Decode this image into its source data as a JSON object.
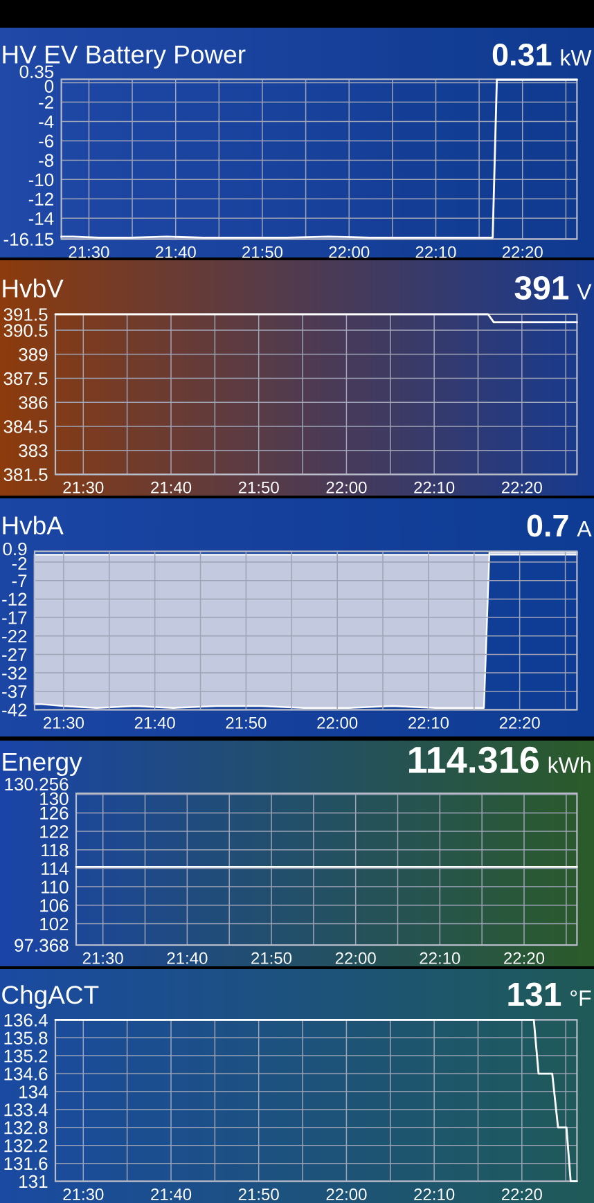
{
  "chart_data": [
    {
      "type": "line",
      "title": "HV EV Battery Power",
      "subtitle": "0.31",
      "ylabel": "kW",
      "color": "#ffffff",
      "grid": true,
      "x": [
        21.447,
        21.47,
        21.52,
        21.58,
        21.65,
        21.72,
        21.8,
        21.88,
        21.96,
        22.04,
        22.12,
        22.2,
        22.25,
        22.276,
        22.284,
        22.32,
        22.38,
        22.438
      ],
      "values": [
        -15.9,
        -15.9,
        -16,
        -16,
        -15.9,
        -16,
        -16,
        -16,
        -15.9,
        -16,
        -16,
        -16,
        -16,
        -16,
        0.3,
        0.3,
        0.3,
        0.3
      ],
      "xlim": [
        21.447,
        22.438
      ],
      "ylim": [
        -16.15,
        0.35
      ],
      "xticks": [
        {
          "value": 21.5,
          "label": "21:30"
        },
        {
          "value": 21.5833,
          "label": null
        },
        {
          "value": 21.6667,
          "label": "21:40"
        },
        {
          "value": 21.75,
          "label": null
        },
        {
          "value": 21.8333,
          "label": "21:50"
        },
        {
          "value": 21.9167,
          "label": null
        },
        {
          "value": 22,
          "label": "22:00"
        },
        {
          "value": 22.0833,
          "label": null
        },
        {
          "value": 22.1667,
          "label": "22:10"
        },
        {
          "value": 22.25,
          "label": null
        },
        {
          "value": 22.3333,
          "label": "22:20"
        },
        {
          "value": 22.4167,
          "label": null
        }
      ],
      "yticks": [
        -16.15,
        -14,
        -12,
        -10,
        -8,
        -6,
        -4,
        -2,
        0,
        0.35
      ]
    },
    {
      "type": "line",
      "title": "HvbV",
      "subtitle": "391",
      "ylabel": "V",
      "color": "#ffffff",
      "grid": true,
      "x": [
        21.447,
        21.7,
        22.0,
        22.269,
        22.28,
        22.35,
        22.438
      ],
      "values": [
        391.5,
        391.5,
        391.5,
        391.5,
        391,
        391,
        391
      ],
      "xlim": [
        21.447,
        22.438
      ],
      "ylim": [
        381.5,
        391.5
      ],
      "xticks": [
        {
          "value": 21.5,
          "label": "21:30"
        },
        {
          "value": 21.5833,
          "label": null
        },
        {
          "value": 21.6667,
          "label": "21:40"
        },
        {
          "value": 21.75,
          "label": null
        },
        {
          "value": 21.8333,
          "label": "21:50"
        },
        {
          "value": 21.9167,
          "label": null
        },
        {
          "value": 22,
          "label": "22:00"
        },
        {
          "value": 22.0833,
          "label": null
        },
        {
          "value": 22.1667,
          "label": "22:10"
        },
        {
          "value": 22.25,
          "label": null
        },
        {
          "value": 22.3333,
          "label": "22:20"
        },
        {
          "value": 22.4167,
          "label": null
        }
      ],
      "yticks": [
        381.5,
        383,
        384.5,
        386,
        387.5,
        389,
        390.5,
        391.5
      ]
    },
    {
      "type": "area",
      "title": "HvbA",
      "subtitle": "0.7",
      "ylabel": "A",
      "color": "#c3c9de",
      "grid": true,
      "x": [
        21.447,
        21.46,
        21.5,
        21.56,
        21.63,
        21.7,
        21.78,
        21.86,
        21.94,
        22.02,
        22.1,
        22.18,
        22.24,
        22.268,
        22.278,
        22.33,
        22.38,
        22.438
      ],
      "values": [
        -40.5,
        -40.5,
        -41,
        -41.5,
        -41,
        -41.5,
        -41,
        -41,
        -41.5,
        -41.5,
        -41,
        -41.5,
        -41.5,
        -41.5,
        0.7,
        0.7,
        0.8,
        0.7
      ],
      "xlim": [
        21.447,
        22.438
      ],
      "ylim": [
        -42,
        0.9
      ],
      "xticks": [
        {
          "value": 21.5,
          "label": "21:30"
        },
        {
          "value": 21.5833,
          "label": null
        },
        {
          "value": 21.6667,
          "label": "21:40"
        },
        {
          "value": 21.75,
          "label": null
        },
        {
          "value": 21.8333,
          "label": "21:50"
        },
        {
          "value": 21.9167,
          "label": null
        },
        {
          "value": 22,
          "label": "22:00"
        },
        {
          "value": 22.0833,
          "label": null
        },
        {
          "value": 22.1667,
          "label": "22:10"
        },
        {
          "value": 22.25,
          "label": null
        },
        {
          "value": 22.3333,
          "label": "22:20"
        },
        {
          "value": 22.4167,
          "label": null
        }
      ],
      "yticks": [
        -42,
        -37,
        -32,
        -27,
        -22,
        -17,
        -12,
        -7,
        -2,
        0.9
      ]
    },
    {
      "type": "line",
      "title": "Energy",
      "subtitle": "114.316",
      "ylabel": "kWh",
      "color": "#ffffff",
      "grid": true,
      "x": [
        21.447,
        21.95,
        22.438
      ],
      "values": [
        114.3,
        114.3,
        114.3
      ],
      "xlim": [
        21.447,
        22.438
      ],
      "ylim": [
        97.368,
        130.256
      ],
      "xticks": [
        {
          "value": 21.5,
          "label": "21:30"
        },
        {
          "value": 21.5833,
          "label": null
        },
        {
          "value": 21.6667,
          "label": "21:40"
        },
        {
          "value": 21.75,
          "label": null
        },
        {
          "value": 21.8333,
          "label": "21:50"
        },
        {
          "value": 21.9167,
          "label": null
        },
        {
          "value": 22,
          "label": "22:00"
        },
        {
          "value": 22.0833,
          "label": null
        },
        {
          "value": 22.1667,
          "label": "22:10"
        },
        {
          "value": 22.25,
          "label": null
        },
        {
          "value": 22.3333,
          "label": "22:20"
        },
        {
          "value": 22.4167,
          "label": null
        }
      ],
      "yticks": [
        97.368,
        102,
        106,
        110,
        114,
        118,
        122,
        126,
        130,
        130.256
      ]
    },
    {
      "type": "line",
      "title": "ChgACT",
      "subtitle": "131",
      "ylabel": "°F",
      "color": "#ffffff",
      "grid": true,
      "x": [
        21.447,
        22.356,
        22.365,
        22.391,
        22.402,
        22.418,
        22.426,
        22.438
      ],
      "values": [
        136.4,
        136.4,
        134.6,
        134.6,
        132.8,
        132.8,
        131,
        131
      ],
      "xlim": [
        21.447,
        22.438
      ],
      "ylim": [
        131,
        136.4
      ],
      "xticks": [
        {
          "value": 21.5,
          "label": "21:30"
        },
        {
          "value": 21.5833,
          "label": null
        },
        {
          "value": 21.6667,
          "label": "21:40"
        },
        {
          "value": 21.75,
          "label": null
        },
        {
          "value": 21.8333,
          "label": "21:50"
        },
        {
          "value": 21.9167,
          "label": null
        },
        {
          "value": 22,
          "label": "22:00"
        },
        {
          "value": 22.0833,
          "label": null
        },
        {
          "value": 22.1667,
          "label": "22:10"
        },
        {
          "value": 22.25,
          "label": null
        },
        {
          "value": 22.3333,
          "label": "22:20"
        },
        {
          "value": 22.4167,
          "label": null
        }
      ],
      "yticks": [
        131,
        131.6,
        132.2,
        132.8,
        133.4,
        134,
        134.6,
        135.2,
        135.8,
        136.4
      ]
    }
  ]
}
